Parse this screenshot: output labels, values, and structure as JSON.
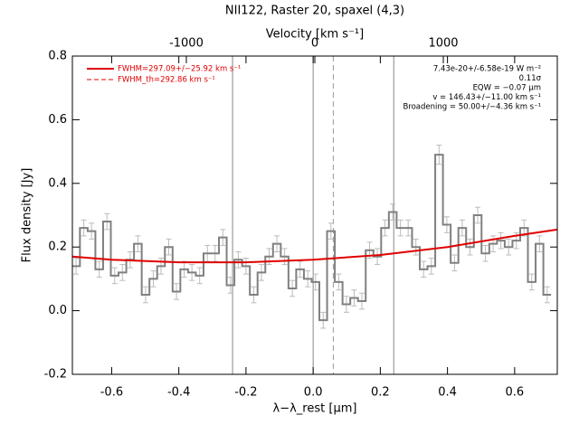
{
  "chart_data": {
    "type": "spectrum",
    "title": "NII122, Raster 20, spaxel (4,3)",
    "xlabel": "λ−λ_rest [μm]",
    "ylabel": "Flux density [Jy]",
    "x2label": "Velocity [km s⁻¹]",
    "xlim": [
      -0.717,
      0.727
    ],
    "ylim": [
      -0.2,
      0.8
    ],
    "x2lim": [
      -1887,
      1887
    ],
    "xticks": [
      -0.6,
      -0.4,
      -0.2,
      {
        "value": 0,
        "label": "0.0"
      },
      0.2,
      0.4,
      0.6
    ],
    "yticks": [
      -0.2,
      {
        "value": 0,
        "label": "0.0"
      },
      0.2,
      0.4,
      0.6,
      0.8
    ],
    "x2ticks": [
      -1000,
      0,
      1000
    ],
    "x": [
      -0.706,
      -0.683,
      -0.66,
      -0.637,
      -0.614,
      -0.591,
      -0.568,
      -0.545,
      -0.522,
      -0.499,
      -0.476,
      -0.453,
      -0.43,
      -0.407,
      -0.384,
      -0.361,
      -0.338,
      -0.315,
      -0.292,
      -0.269,
      -0.246,
      -0.223,
      -0.2,
      -0.177,
      -0.154,
      -0.131,
      -0.108,
      -0.085,
      -0.062,
      -0.039,
      -0.016,
      0.007,
      0.03,
      0.053,
      0.076,
      0.099,
      0.122,
      0.145,
      0.168,
      0.191,
      0.214,
      0.237,
      0.26,
      0.283,
      0.306,
      0.329,
      0.352,
      0.375,
      0.398,
      0.421,
      0.444,
      0.467,
      0.49,
      0.513,
      0.536,
      0.559,
      0.582,
      0.605,
      0.628,
      0.651,
      0.674,
      0.697
    ],
    "values": [
      0.14,
      0.26,
      0.25,
      0.13,
      0.28,
      0.11,
      0.12,
      0.16,
      0.21,
      0.05,
      0.1,
      0.14,
      0.2,
      0.06,
      0.13,
      0.12,
      0.11,
      0.18,
      0.18,
      0.23,
      0.08,
      0.16,
      0.14,
      0.05,
      0.12,
      0.17,
      0.21,
      0.17,
      0.07,
      0.13,
      0.1,
      0.09,
      -0.03,
      0.25,
      0.09,
      0.02,
      0.04,
      0.03,
      0.19,
      0.17,
      0.26,
      0.31,
      0.26,
      0.26,
      0.2,
      0.13,
      0.14,
      0.49,
      0.27,
      0.15,
      0.26,
      0.2,
      0.3,
      0.18,
      0.21,
      0.22,
      0.2,
      0.22,
      0.26,
      0.09,
      0.21,
      0.05
    ],
    "errors": [
      0.025,
      0.025,
      0.025,
      0.025,
      0.025,
      0.025,
      0.025,
      0.025,
      0.025,
      0.025,
      0.025,
      0.025,
      0.025,
      0.025,
      0.025,
      0.025,
      0.025,
      0.025,
      0.025,
      0.025,
      0.025,
      0.025,
      0.025,
      0.025,
      0.025,
      0.025,
      0.025,
      0.025,
      0.025,
      0.025,
      0.025,
      0.025,
      0.025,
      0.025,
      0.025,
      0.025,
      0.025,
      0.025,
      0.025,
      0.025,
      0.025,
      0.025,
      0.025,
      0.025,
      0.025,
      0.025,
      0.025,
      0.03,
      0.025,
      0.025,
      0.025,
      0.025,
      0.025,
      0.025,
      0.025,
      0.025,
      0.025,
      0.025,
      0.025,
      0.025,
      0.025,
      0.025
    ],
    "color": "#808080",
    "error_color": "#bbbbbb",
    "fit": {
      "name": "FWHM=297.09+/−25.92 km s⁻¹",
      "color": "#e00000",
      "x": [
        -0.717,
        -0.6,
        -0.4,
        -0.2,
        0,
        0.2,
        0.4,
        0.6,
        0.727
      ],
      "values": [
        0.17,
        0.16,
        0.152,
        0.152,
        0.16,
        0.175,
        0.2,
        0.235,
        0.255
      ]
    },
    "fit_th": {
      "name": "FWHM_th=292.86 km s⁻¹",
      "color": "#e00000"
    },
    "vlines": [
      -0.24,
      0,
      0.24
    ],
    "vlines_dashed": [
      0.06
    ],
    "annotations": [
      "7.43e-20+/-6.58e-19 W m⁻²",
      "0.11σ",
      "EQW = −0.07 μm",
      "v = 146.43+/−11.00 km s⁻¹",
      "Broadening = 50.00+/−4.36 km s⁻¹"
    ]
  }
}
